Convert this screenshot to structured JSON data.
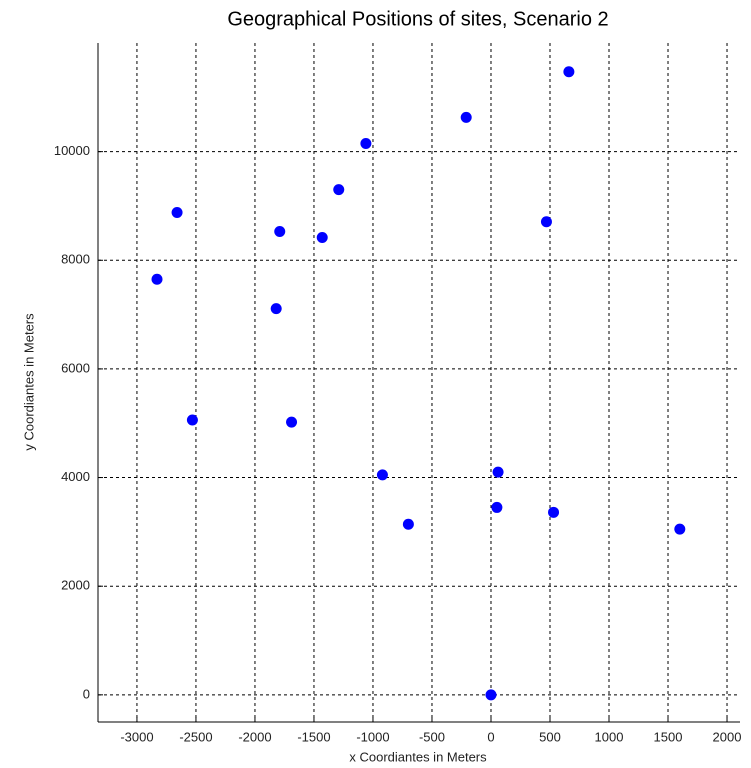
{
  "chart_data": {
    "type": "scatter",
    "title": "Geographical Positions of sites, Scenario 2",
    "x_label": "x Coordiantes in Meters",
    "y_label": "y Coordiantes in Meters",
    "color": "#0000ff",
    "x": [
      -2830,
      -2660,
      -2530,
      -1820,
      -1790,
      -1690,
      -1430,
      -1290,
      -1060,
      -920,
      -700,
      -210,
      0,
      60,
      50,
      470,
      530,
      660,
      1600
    ],
    "values": [
      7650,
      8880,
      5060,
      7110,
      8530,
      5020,
      8420,
      9300,
      10150,
      4050,
      3140,
      10630,
      0,
      4100,
      3450,
      8710,
      3360,
      11470,
      3050
    ],
    "xlim": [
      -3330,
      2110
    ],
    "ylim": [
      -500,
      12000
    ],
    "xticks": [
      -3000,
      -2500,
      -2000,
      -1500,
      -1000,
      -500,
      0,
      500,
      1000,
      1500,
      2000
    ],
    "yticks": [
      0,
      2000,
      4000,
      6000,
      8000,
      10000
    ],
    "grid": true
  }
}
